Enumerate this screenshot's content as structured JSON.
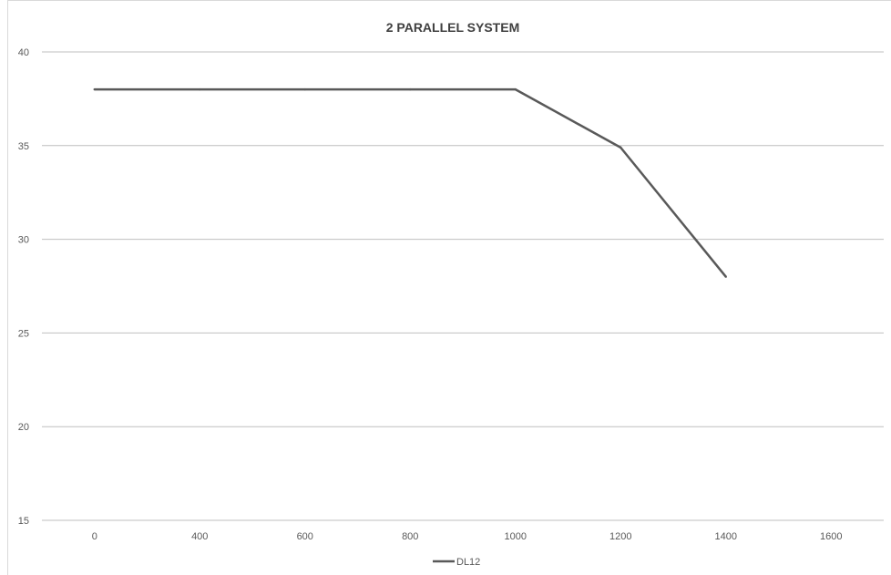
{
  "chart_data": {
    "type": "line",
    "title": "2 PARALLEL SYSTEM",
    "xlabel": "",
    "ylabel": "",
    "categories": [
      "0",
      "400",
      "600",
      "800",
      "1000",
      "1200",
      "1400",
      "1600"
    ],
    "series": [
      {
        "name": "DL12",
        "values": [
          38,
          38,
          38,
          38,
          38,
          34.9,
          28,
          null
        ],
        "color": "#595959"
      }
    ],
    "ylim": [
      15,
      40
    ],
    "yticks": [
      15,
      20,
      25,
      30,
      35,
      40
    ],
    "grid": true,
    "legend_position": "bottom"
  }
}
